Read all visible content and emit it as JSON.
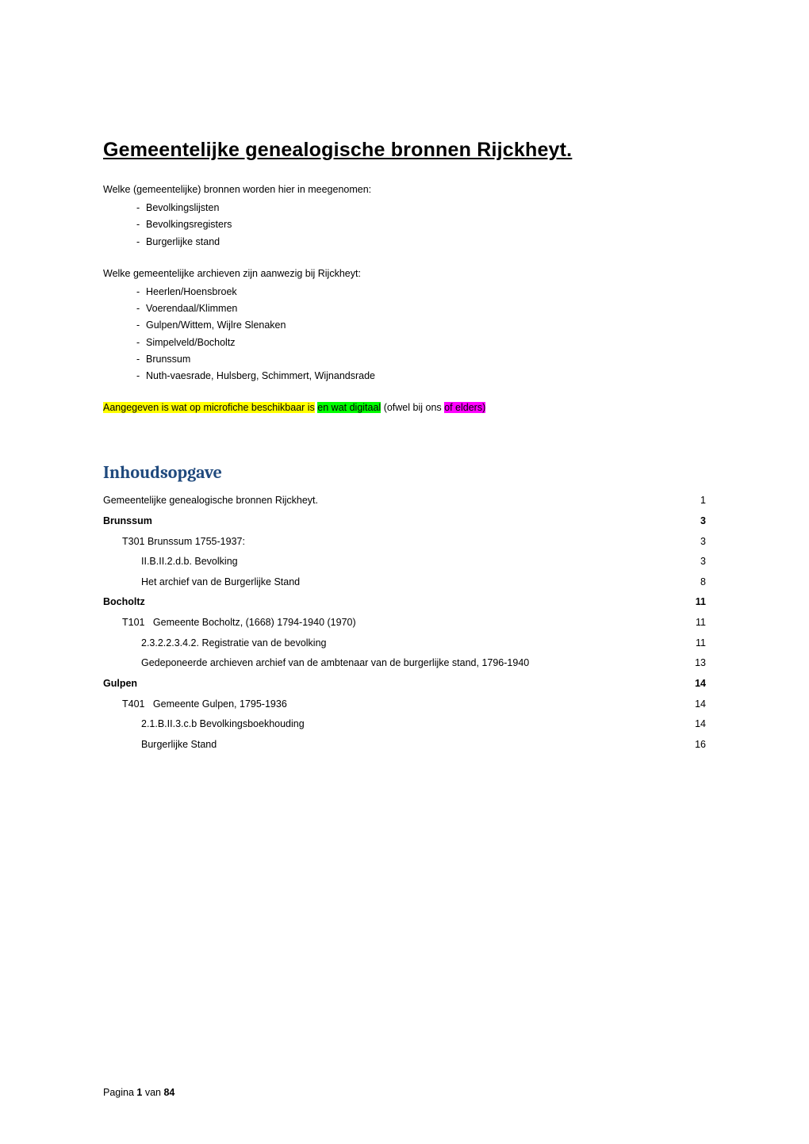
{
  "title": "Gemeentelijke genealogische bronnen Rijckheyt.",
  "intro": {
    "bronnen_label": "Welke (gemeentelijke) bronnen worden hier in meegenomen:",
    "bronnen_items": [
      "Bevolkingslijsten",
      "Bevolkingsregisters",
      "Burgerlijke stand"
    ],
    "archieven_label": "Welke gemeentelijke archieven zijn aanwezig bij Rijckheyt:",
    "archieven_items": [
      "Heerlen/Hoensbroek",
      "Voerendaal/Klimmen",
      "Gulpen/Wittem, Wijlre Slenaken",
      "Simpelveld/Bocholtz",
      "Brunssum",
      "Nuth-vaesrade, Hulsberg, Schimmert, Wijnandsrade"
    ]
  },
  "highlight": {
    "seg_yellow": "Aangegeven is wat op microfiche beschikbaar is",
    "seg_green": "en wat digitaal",
    "seg_plain": " (ofwel bij ons ",
    "seg_pink": "of elders)"
  },
  "toc_heading": "Inhoudsopgave",
  "toc": [
    {
      "label": "Gemeentelijke genealogische bronnen Rijckheyt.",
      "page": "1",
      "indent": 0,
      "bold": false
    },
    {
      "label": "Brunssum",
      "page": "3",
      "indent": 0,
      "bold": true
    },
    {
      "label": "T301 Brunssum 1755-1937:",
      "page": "3",
      "indent": 1,
      "bold": false
    },
    {
      "label": "II.B.II.2.d.b. Bevolking",
      "page": "3",
      "indent": 2,
      "bold": false
    },
    {
      "label": "Het archief van de Burgerlijke Stand",
      "page": "8",
      "indent": 2,
      "bold": false
    },
    {
      "label": "Bocholtz",
      "page": "11",
      "indent": 0,
      "bold": true
    },
    {
      "label": "T101   Gemeente Bocholtz, (1668) 1794-1940 (1970)",
      "page": "11",
      "indent": 1,
      "bold": false
    },
    {
      "label": "2.3.2.2.3.4.2. Registratie van de bevolking",
      "page": "11",
      "indent": 2,
      "bold": false
    },
    {
      "label": "Gedeponeerde archieven archief van de ambtenaar van de burgerlijke stand, 1796-1940",
      "page": "13",
      "indent": 2,
      "bold": false
    },
    {
      "label": "Gulpen",
      "page": "14",
      "indent": 0,
      "bold": true
    },
    {
      "label": "T401   Gemeente Gulpen, 1795-1936",
      "page": "14",
      "indent": 1,
      "bold": false
    },
    {
      "label": "2.1.B.II.3.c.b Bevolkingsboekhouding",
      "page": "14",
      "indent": 2,
      "bold": false
    },
    {
      "label": "Burgerlijke Stand",
      "page": "16",
      "indent": 2,
      "bold": false
    }
  ],
  "footer": {
    "prefix": "Pagina ",
    "current": "1",
    "middle": " van ",
    "total": "84"
  },
  "colors": {
    "heading_blue": "#1f497d",
    "hl_yellow": "#ffff00",
    "hl_green": "#00ff00",
    "hl_pink": "#ff00ff",
    "text": "#000000",
    "background": "#ffffff"
  },
  "typography": {
    "body_font": "Verdana",
    "body_size_pt": 9,
    "title_size_pt": 18,
    "toc_heading_font": "Cambria",
    "toc_heading_size_pt": 16
  }
}
